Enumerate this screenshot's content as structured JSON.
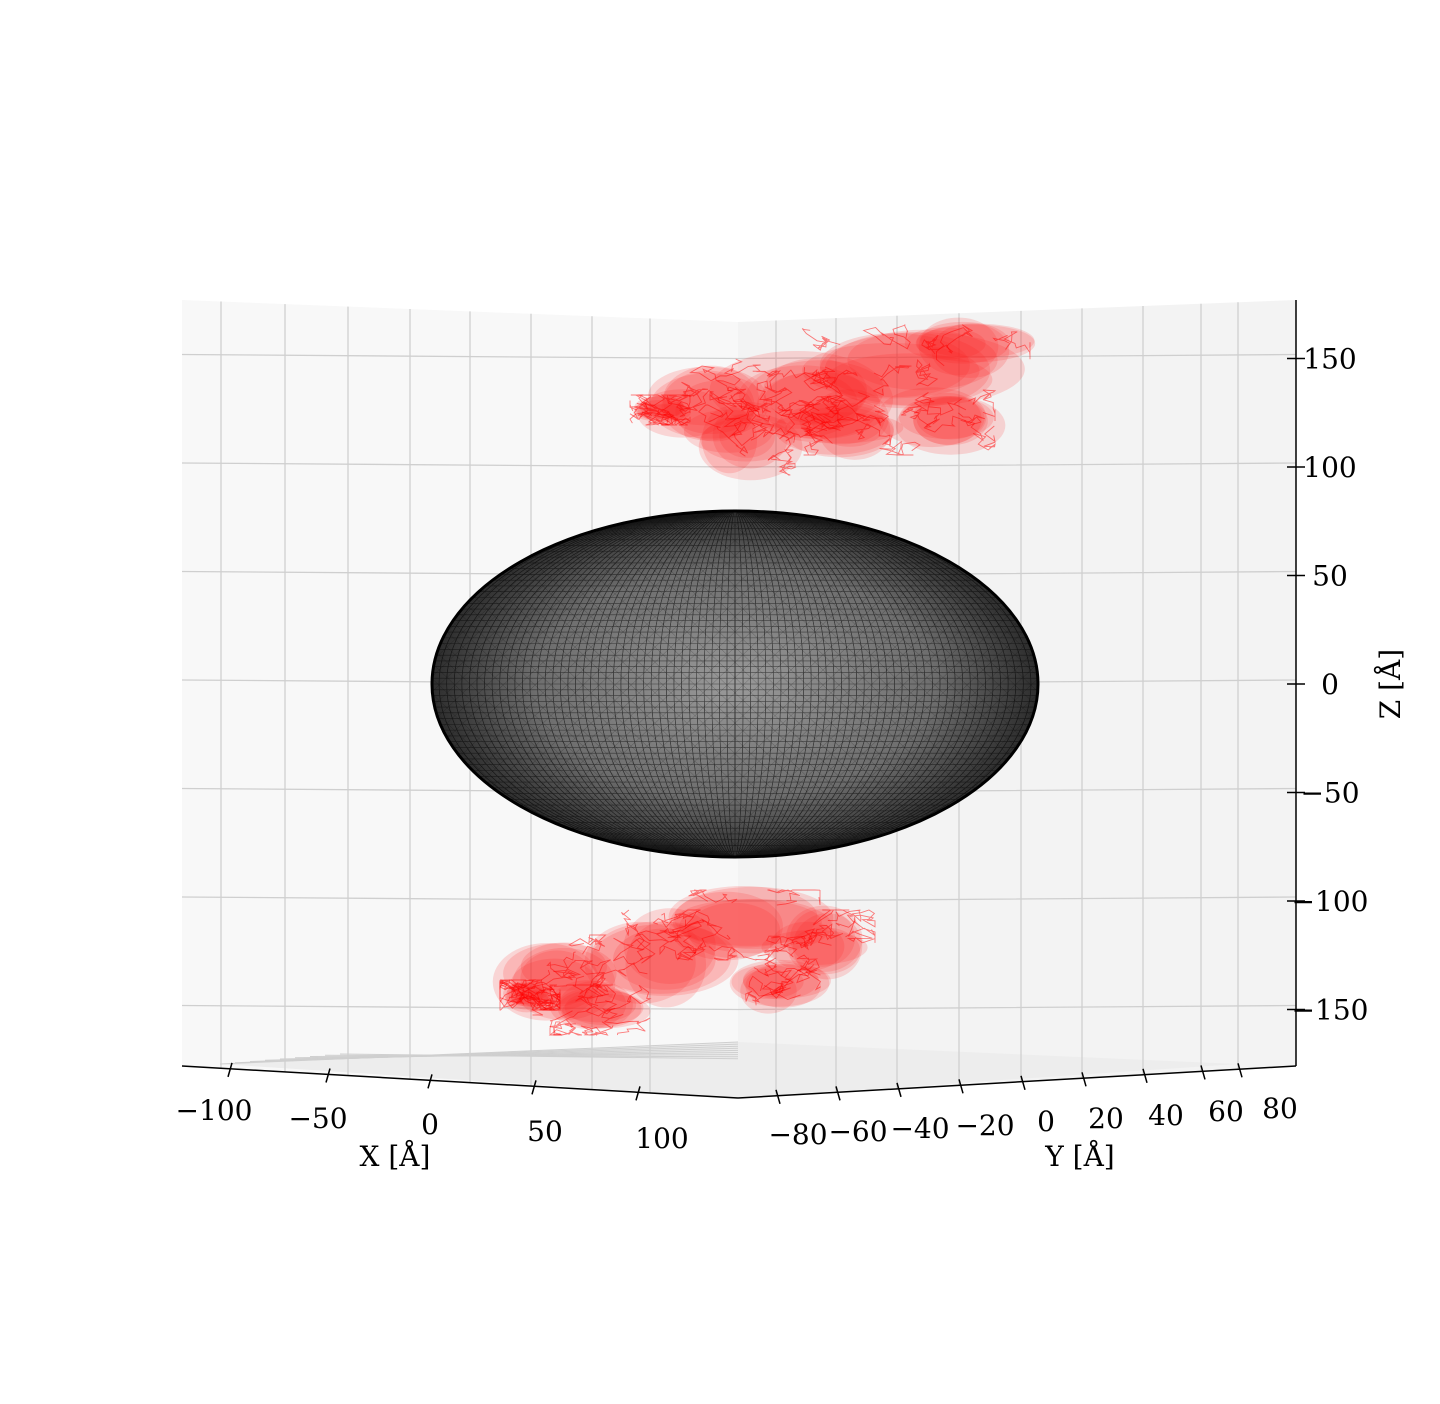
{
  "chart_data": {
    "type": "3d-surface-scatter",
    "xlabel": "X [Å]",
    "ylabel": "Y [Å]",
    "zlabel": "Z [Å]",
    "x_ticks": [
      "−100",
      "−50",
      "0",
      "50",
      "100"
    ],
    "y_ticks": [
      "−80",
      "−60",
      "−40",
      "−20",
      "0",
      "20",
      "40",
      "60",
      "80"
    ],
    "z_ticks": [
      "150",
      "100",
      "50",
      "0",
      "−50",
      "−100",
      "−150"
    ],
    "xlim": [
      -115,
      115
    ],
    "ylim": [
      -90,
      90
    ],
    "zlim": [
      -175,
      175
    ],
    "grid": true,
    "colors": {
      "ellipsoid": "#000000",
      "protein": "#ff0000",
      "pane_left": "#f8f8f8",
      "pane_right": "#f3f3f3",
      "grid": "#cfcfcf"
    },
    "ellipsoid": {
      "semi_axis_horizontal": 140,
      "semi_axis_vertical": 80,
      "center": [
        0,
        0,
        0
      ]
    },
    "protein_upper": {
      "z_range": [
        95,
        170
      ]
    },
    "protein_lower": {
      "z_range": [
        -165,
        -90
      ]
    }
  }
}
